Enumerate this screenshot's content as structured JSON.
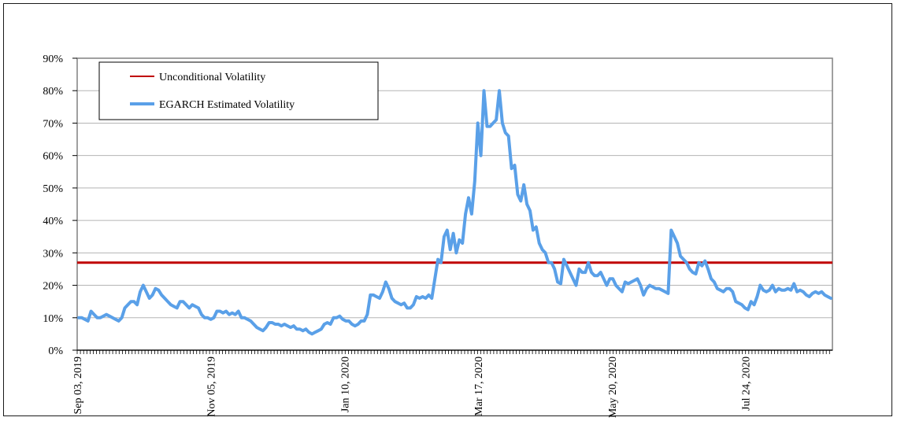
{
  "chart_data": {
    "type": "line",
    "title": "",
    "xlabel": "",
    "ylabel": "",
    "ylim": [
      0,
      0.9
    ],
    "y_ticks": [
      0,
      0.1,
      0.2,
      0.3,
      0.4,
      0.5,
      0.6,
      0.7,
      0.8,
      0.9
    ],
    "y_tick_labels": [
      "0%",
      "10%",
      "20%",
      "30%",
      "40%",
      "50%",
      "60%",
      "70%",
      "80%",
      "90%"
    ],
    "x_ticks": [
      "Sep 03, 2019",
      "Nov 05, 2019",
      "Jan 10, 2020",
      "Mar 17, 2020",
      "May 20, 2020",
      "Jul 24, 2020"
    ],
    "grid": "horizontal",
    "legend_position": "top-left",
    "colors": {
      "unconditional": "#c00000",
      "egarch": "#5aa0e8"
    },
    "series": [
      {
        "name": "Unconditional Volatility",
        "constant": 0.27
      },
      {
        "name": "EGARCH Estimated Volatility",
        "values": [
          0.1,
          0.1,
          0.095,
          0.09,
          0.12,
          0.11,
          0.1,
          0.1,
          0.105,
          0.11,
          0.105,
          0.1,
          0.095,
          0.09,
          0.1,
          0.13,
          0.14,
          0.15,
          0.15,
          0.14,
          0.18,
          0.2,
          0.18,
          0.16,
          0.17,
          0.19,
          0.185,
          0.17,
          0.16,
          0.15,
          0.14,
          0.135,
          0.13,
          0.15,
          0.15,
          0.14,
          0.13,
          0.14,
          0.135,
          0.13,
          0.11,
          0.1,
          0.1,
          0.095,
          0.1,
          0.12,
          0.12,
          0.115,
          0.12,
          0.11,
          0.115,
          0.11,
          0.12,
          0.1,
          0.1,
          0.095,
          0.09,
          0.08,
          0.07,
          0.065,
          0.06,
          0.07,
          0.085,
          0.085,
          0.08,
          0.08,
          0.075,
          0.08,
          0.075,
          0.07,
          0.075,
          0.065,
          0.065,
          0.06,
          0.065,
          0.055,
          0.05,
          0.055,
          0.06,
          0.065,
          0.08,
          0.085,
          0.08,
          0.1,
          0.1,
          0.105,
          0.095,
          0.09,
          0.09,
          0.08,
          0.075,
          0.08,
          0.09,
          0.09,
          0.11,
          0.17,
          0.17,
          0.165,
          0.16,
          0.18,
          0.21,
          0.19,
          0.16,
          0.15,
          0.145,
          0.14,
          0.145,
          0.13,
          0.13,
          0.14,
          0.165,
          0.16,
          0.165,
          0.16,
          0.17,
          0.16,
          0.22,
          0.28,
          0.27,
          0.35,
          0.37,
          0.31,
          0.36,
          0.3,
          0.34,
          0.33,
          0.42,
          0.47,
          0.42,
          0.52,
          0.7,
          0.6,
          0.8,
          0.69,
          0.69,
          0.7,
          0.71,
          0.8,
          0.7,
          0.67,
          0.66,
          0.56,
          0.57,
          0.48,
          0.46,
          0.51,
          0.45,
          0.43,
          0.37,
          0.38,
          0.33,
          0.31,
          0.3,
          0.27,
          0.27,
          0.25,
          0.21,
          0.205,
          0.28,
          0.26,
          0.24,
          0.22,
          0.2,
          0.25,
          0.24,
          0.24,
          0.27,
          0.24,
          0.23,
          0.23,
          0.24,
          0.22,
          0.2,
          0.22,
          0.22,
          0.2,
          0.19,
          0.18,
          0.21,
          0.205,
          0.21,
          0.215,
          0.22,
          0.2,
          0.17,
          0.19,
          0.2,
          0.195,
          0.19,
          0.19,
          0.185,
          0.18,
          0.175,
          0.37,
          0.35,
          0.33,
          0.29,
          0.28,
          0.27,
          0.25,
          0.24,
          0.235,
          0.27,
          0.26,
          0.275,
          0.25,
          0.22,
          0.21,
          0.19,
          0.185,
          0.18,
          0.19,
          0.19,
          0.18,
          0.15,
          0.145,
          0.14,
          0.13,
          0.125,
          0.15,
          0.14,
          0.165,
          0.2,
          0.185,
          0.18,
          0.185,
          0.2,
          0.18,
          0.19,
          0.185,
          0.185,
          0.19,
          0.185,
          0.205,
          0.18,
          0.185,
          0.18,
          0.17,
          0.165,
          0.175,
          0.18,
          0.175,
          0.18,
          0.17,
          0.165,
          0.16
        ]
      }
    ]
  }
}
